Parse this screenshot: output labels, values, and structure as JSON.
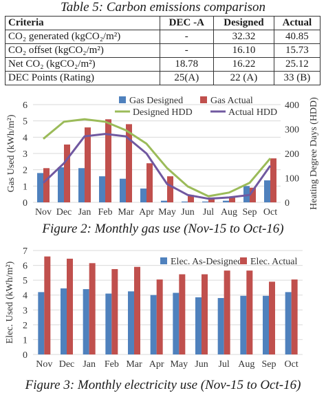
{
  "table": {
    "title": "Table 5: Carbon emissions comparison",
    "headers": [
      "Criteria",
      "DEC -A",
      "Designed",
      "Actual"
    ],
    "rows": [
      {
        "criteria": "CO₂ generated (kgCO₂/m²)",
        "dec": "-",
        "designed": "32.32",
        "actual": "40.85"
      },
      {
        "criteria": "CO₂ offset (kgCO₂/m²)",
        "dec": "-",
        "designed": "16.10",
        "actual": "15.73"
      },
      {
        "criteria": "Net CO₂ (kgCO₂/m²)",
        "dec": "18.78",
        "designed": "16.22",
        "actual": "25.12"
      },
      {
        "criteria": "DEC Points (Rating)",
        "dec": "25(A)",
        "designed": "22 (A)",
        "actual": "33 (B)"
      }
    ]
  },
  "figure2": {
    "caption": "Figure 2: Monthly gas use (Nov-15 to Oct-16)"
  },
  "figure3": {
    "caption": "Figure 3: Monthly electricity use (Nov-15 to Oct-16)"
  },
  "colors": {
    "blue": "#4F81BD",
    "red": "#C0504D",
    "green": "#9BBB59",
    "purple": "#7058A0",
    "grid": "#d9d9d9",
    "text": "#333333"
  },
  "chart_data": [
    {
      "type": "bar",
      "categories": [
        "Nov",
        "Dec",
        "Jan",
        "Feb",
        "Mar",
        "Apr",
        "May",
        "Jun",
        "Jul",
        "Aug",
        "Sep",
        "Oct"
      ],
      "ylabel": "Gas Used (kWh/m²)",
      "ylim": [
        0,
        6
      ],
      "yticks": [
        0,
        1,
        2,
        3,
        4,
        5,
        6
      ],
      "y2label": "Heating Degree Days (HDD)",
      "y2lim": [
        0,
        400
      ],
      "y2ticks": [
        0,
        100,
        200,
        300,
        400
      ],
      "grid": true,
      "legend": "top",
      "series": [
        {
          "name": "Gas Designed",
          "kind": "bar",
          "axis": "left",
          "color": "#4F81BD",
          "values": [
            1.8,
            2.15,
            2.1,
            1.6,
            1.45,
            0.85,
            0.1,
            0.05,
            0.05,
            0.1,
            1.0,
            1.35
          ]
        },
        {
          "name": "Gas Actual",
          "kind": "bar",
          "axis": "left",
          "color": "#C0504D",
          "values": [
            2.1,
            3.55,
            4.6,
            5.1,
            4.8,
            2.4,
            1.6,
            0.45,
            0.3,
            0.35,
            0.9,
            2.7
          ]
        },
        {
          "name": "Designed HDD",
          "kind": "line",
          "axis": "right",
          "color": "#9BBB59",
          "values": [
            260,
            330,
            340,
            330,
            295,
            240,
            140,
            65,
            25,
            40,
            80,
            180
          ]
        },
        {
          "name": "Actual HDD",
          "kind": "line",
          "axis": "right",
          "color": "#7058A0",
          "values": [
            80,
            160,
            270,
            280,
            270,
            200,
            75,
            30,
            15,
            20,
            30,
            150
          ]
        }
      ]
    },
    {
      "type": "bar",
      "categories": [
        "Nov",
        "Dec",
        "Jan",
        "Feb",
        "Mar",
        "Apr",
        "May",
        "Jun",
        "Jul",
        "Aug",
        "Sep",
        "Oct"
      ],
      "ylabel": "Elec. Used (kWh/m²)",
      "ylim": [
        0,
        7
      ],
      "yticks": [
        0,
        1,
        2,
        3,
        4,
        5,
        6,
        7
      ],
      "grid": true,
      "legend": "top-right",
      "series": [
        {
          "name": "Elec. As-Designed",
          "kind": "bar",
          "color": "#4F81BD",
          "values": [
            4.2,
            4.45,
            4.4,
            4.1,
            4.25,
            4.0,
            4.15,
            3.85,
            3.8,
            3.95,
            3.95,
            4.2
          ]
        },
        {
          "name": "Elec. Actual",
          "kind": "bar",
          "color": "#C0504D",
          "values": [
            6.6,
            6.45,
            6.15,
            5.75,
            5.9,
            5.05,
            5.4,
            5.4,
            5.65,
            5.65,
            4.9,
            5.05
          ]
        }
      ]
    }
  ]
}
